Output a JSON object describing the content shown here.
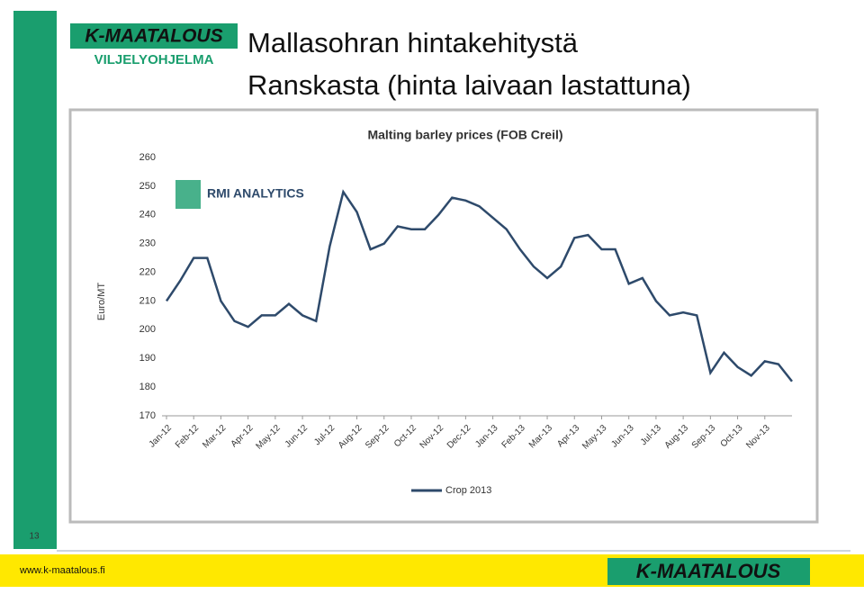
{
  "slide": {
    "logo_top": "K-MAATALOUS",
    "logo_sub": "VILJELYOHJELMA",
    "title_line1": "Mallasohran hintakehitystä",
    "title_line2": "Ranskasta (hinta laivaan lastattuna)",
    "page_number": "13",
    "url": "www.k-maatalous.fi",
    "logo_bottom": "K-MAATALOUS",
    "watermark": "RMI ANALYTICS"
  },
  "chart_data": {
    "type": "line",
    "title": "Malting barley prices (FOB Creil)",
    "y_label": "Euro/MT",
    "categories": [
      "Jan-12",
      null,
      "Feb-12",
      null,
      "Mar-12",
      null,
      "Apr-12",
      null,
      "May-12",
      null,
      "Jun-12",
      null,
      "Jul-12",
      null,
      "Aug-12",
      null,
      "Sep-12",
      null,
      "Oct-12",
      null,
      "Nov-12",
      null,
      "Dec-12",
      null,
      "Jan-13",
      null,
      "Feb-13",
      null,
      "Mar-13",
      null,
      "Apr-13",
      null,
      "May-13",
      null,
      "Jun-13",
      null,
      "Jul-13",
      null,
      "Aug-13",
      null,
      "Sep-13",
      null,
      "Oct-13",
      null,
      "Nov-13",
      null,
      null
    ],
    "series": [
      {
        "name": "Crop 2013",
        "color": "#2e4a6b",
        "values": [
          210,
          217,
          225,
          225,
          210,
          203,
          201,
          205,
          205,
          209,
          205,
          203,
          229,
          248,
          241,
          228,
          230,
          236,
          235,
          235,
          240,
          246,
          245,
          243,
          239,
          235,
          228,
          222,
          218,
          222,
          232,
          233,
          228,
          228,
          216,
          218,
          210,
          205,
          206,
          205,
          185,
          192,
          187,
          184,
          189,
          188,
          182
        ]
      }
    ],
    "ylim": [
      170,
      260
    ],
    "yticks": [
      170,
      180,
      190,
      200,
      210,
      220,
      230,
      240,
      250,
      260
    ],
    "grid": false,
    "legend": "bottom"
  }
}
